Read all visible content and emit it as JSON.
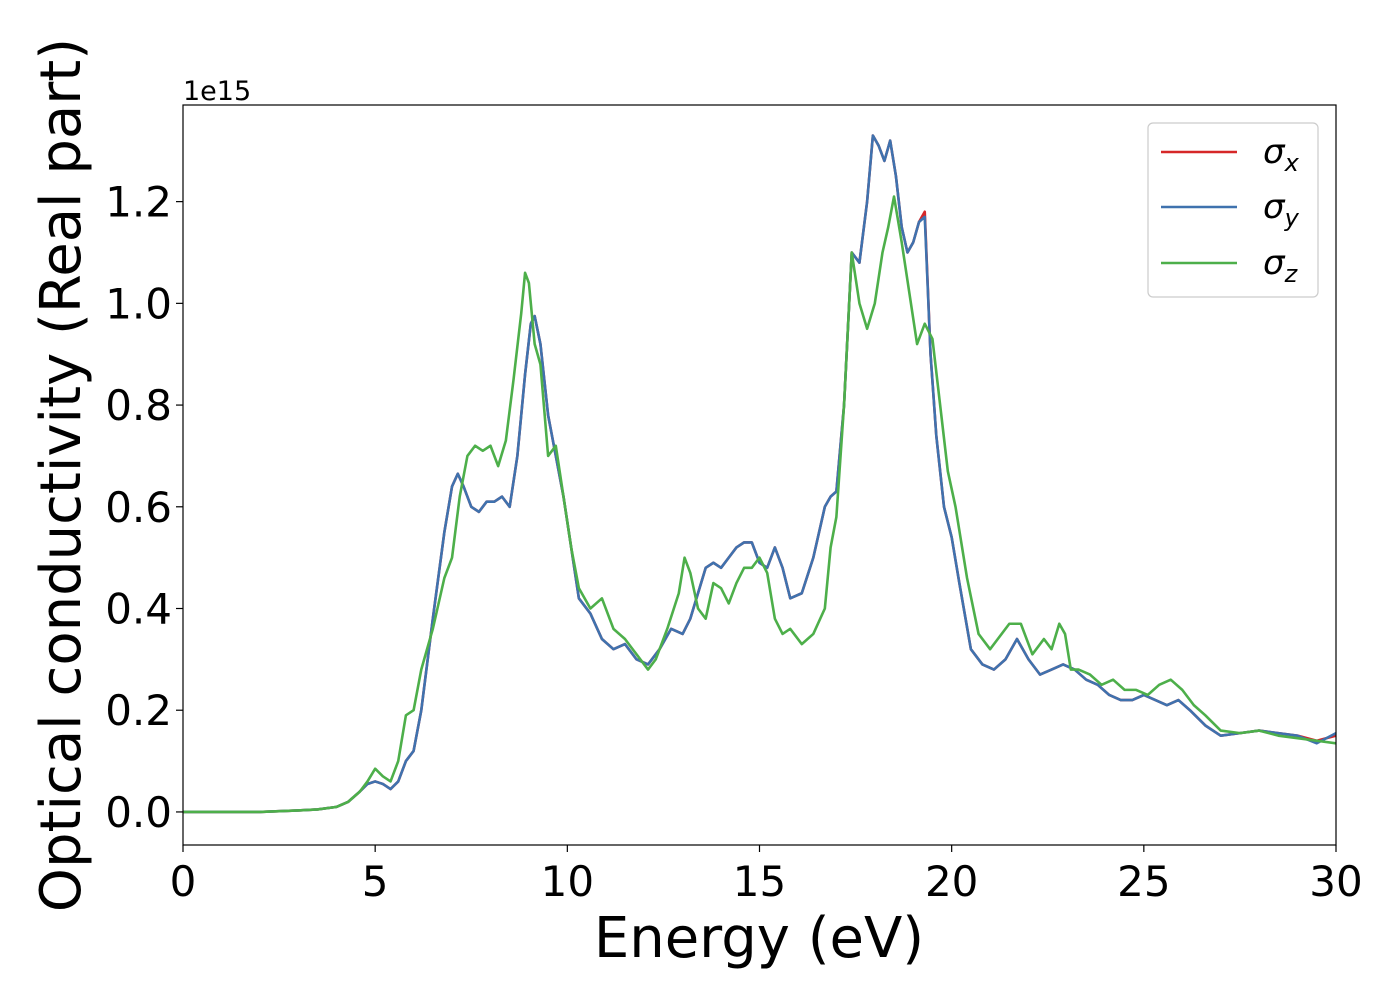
{
  "chart_data": {
    "type": "line",
    "xlabel": "Energy (eV)",
    "ylabel": "Optical conductivity (Real part)",
    "offset_text": "1e15",
    "xlim": [
      0,
      30
    ],
    "ylim": [
      -0.065,
      1.39
    ],
    "y_scale_factor": 1000000000000000.0,
    "xticks": [
      0,
      5,
      10,
      15,
      20,
      25,
      30
    ],
    "xtick_labels": [
      "0",
      "5",
      "10",
      "15",
      "20",
      "25",
      "30"
    ],
    "yticks": [
      0.0,
      0.2,
      0.4,
      0.6,
      0.8,
      1.0,
      1.2
    ],
    "ytick_labels": [
      "0.0",
      "0.2",
      "0.4",
      "0.6",
      "0.8",
      "1.0",
      "1.2"
    ],
    "grid": false,
    "legend_position": "top-right",
    "legend": [
      {
        "symbol": "σ",
        "subscript": "x",
        "color": "#d62728"
      },
      {
        "symbol": "σ",
        "subscript": "y",
        "color": "#3f72ae"
      },
      {
        "symbol": "σ",
        "subscript": "z",
        "color": "#4daf4a"
      }
    ],
    "series": [
      {
        "color": "#d62728",
        "x": [
          0,
          2,
          3,
          3.5,
          4,
          4.3,
          4.6,
          4.8,
          5.0,
          5.2,
          5.4,
          5.6,
          5.8,
          6.0,
          6.2,
          6.5,
          6.8,
          7.0,
          7.15,
          7.3,
          7.5,
          7.7,
          7.9,
          8.1,
          8.3,
          8.5,
          8.7,
          8.9,
          9.05,
          9.15,
          9.3,
          9.5,
          9.7,
          9.9,
          10.1,
          10.3,
          10.6,
          10.9,
          11.2,
          11.5,
          11.8,
          12.1,
          12.4,
          12.7,
          13.0,
          13.2,
          13.4,
          13.6,
          13.8,
          14.0,
          14.2,
          14.4,
          14.6,
          14.8,
          15.0,
          15.2,
          15.4,
          15.6,
          15.8,
          16.1,
          16.4,
          16.7,
          16.85,
          17.0,
          17.2,
          17.4,
          17.6,
          17.8,
          17.95,
          18.1,
          18.25,
          18.4,
          18.55,
          18.7,
          18.85,
          19.0,
          19.15,
          19.3,
          19.45,
          19.6,
          19.8,
          20.0,
          20.2,
          20.5,
          20.8,
          21.1,
          21.4,
          21.7,
          22.0,
          22.3,
          22.6,
          22.9,
          23.2,
          23.5,
          23.8,
          24.1,
          24.4,
          24.7,
          25.0,
          25.3,
          25.6,
          25.9,
          26.2,
          26.6,
          27.0,
          27.5,
          28.0,
          28.5,
          29.0,
          29.5,
          30.0
        ],
        "y": [
          0,
          0,
          0.003,
          0.005,
          0.01,
          0.02,
          0.04,
          0.055,
          0.06,
          0.055,
          0.045,
          0.06,
          0.1,
          0.12,
          0.2,
          0.38,
          0.55,
          0.64,
          0.665,
          0.64,
          0.6,
          0.59,
          0.61,
          0.61,
          0.62,
          0.6,
          0.7,
          0.86,
          0.96,
          0.975,
          0.92,
          0.78,
          0.7,
          0.62,
          0.52,
          0.42,
          0.39,
          0.34,
          0.32,
          0.33,
          0.3,
          0.29,
          0.32,
          0.36,
          0.35,
          0.38,
          0.43,
          0.48,
          0.49,
          0.48,
          0.5,
          0.52,
          0.53,
          0.53,
          0.49,
          0.48,
          0.52,
          0.48,
          0.42,
          0.43,
          0.5,
          0.6,
          0.62,
          0.63,
          0.8,
          1.1,
          1.08,
          1.2,
          1.33,
          1.31,
          1.28,
          1.32,
          1.25,
          1.15,
          1.1,
          1.12,
          1.16,
          1.18,
          0.9,
          0.74,
          0.6,
          0.54,
          0.45,
          0.32,
          0.29,
          0.28,
          0.3,
          0.34,
          0.3,
          0.27,
          0.28,
          0.29,
          0.28,
          0.26,
          0.25,
          0.23,
          0.22,
          0.22,
          0.23,
          0.22,
          0.21,
          0.22,
          0.2,
          0.17,
          0.15,
          0.155,
          0.16,
          0.155,
          0.15,
          0.14,
          0.15
        ]
      },
      {
        "color": "#3f72ae",
        "x": [
          0,
          2,
          3,
          3.5,
          4,
          4.3,
          4.6,
          4.8,
          5.0,
          5.2,
          5.4,
          5.6,
          5.8,
          6.0,
          6.2,
          6.5,
          6.8,
          7.0,
          7.15,
          7.3,
          7.5,
          7.7,
          7.9,
          8.1,
          8.3,
          8.5,
          8.7,
          8.9,
          9.05,
          9.15,
          9.3,
          9.5,
          9.7,
          9.9,
          10.1,
          10.3,
          10.6,
          10.9,
          11.2,
          11.5,
          11.8,
          12.1,
          12.4,
          12.7,
          13.0,
          13.2,
          13.4,
          13.6,
          13.8,
          14.0,
          14.2,
          14.4,
          14.6,
          14.8,
          15.0,
          15.2,
          15.4,
          15.6,
          15.8,
          16.1,
          16.4,
          16.7,
          16.85,
          17.0,
          17.2,
          17.4,
          17.6,
          17.8,
          17.95,
          18.1,
          18.25,
          18.4,
          18.55,
          18.7,
          18.85,
          19.0,
          19.15,
          19.3,
          19.45,
          19.6,
          19.8,
          20.0,
          20.2,
          20.5,
          20.8,
          21.1,
          21.4,
          21.7,
          22.0,
          22.3,
          22.6,
          22.9,
          23.2,
          23.5,
          23.8,
          24.1,
          24.4,
          24.7,
          25.0,
          25.3,
          25.6,
          25.9,
          26.2,
          26.6,
          27.0,
          27.5,
          28.0,
          28.5,
          29.0,
          29.5,
          30.0
        ],
        "y": [
          0,
          0,
          0.003,
          0.005,
          0.01,
          0.02,
          0.04,
          0.055,
          0.06,
          0.055,
          0.045,
          0.06,
          0.1,
          0.12,
          0.2,
          0.38,
          0.55,
          0.64,
          0.665,
          0.64,
          0.6,
          0.59,
          0.61,
          0.61,
          0.62,
          0.6,
          0.7,
          0.86,
          0.96,
          0.975,
          0.92,
          0.78,
          0.7,
          0.62,
          0.52,
          0.42,
          0.39,
          0.34,
          0.32,
          0.33,
          0.3,
          0.29,
          0.32,
          0.36,
          0.35,
          0.38,
          0.43,
          0.48,
          0.49,
          0.48,
          0.5,
          0.52,
          0.53,
          0.53,
          0.49,
          0.48,
          0.52,
          0.48,
          0.42,
          0.43,
          0.5,
          0.6,
          0.62,
          0.63,
          0.8,
          1.1,
          1.08,
          1.2,
          1.33,
          1.31,
          1.28,
          1.32,
          1.25,
          1.15,
          1.1,
          1.12,
          1.16,
          1.17,
          0.9,
          0.74,
          0.6,
          0.54,
          0.45,
          0.32,
          0.29,
          0.28,
          0.3,
          0.34,
          0.3,
          0.27,
          0.28,
          0.29,
          0.28,
          0.26,
          0.25,
          0.23,
          0.22,
          0.22,
          0.23,
          0.22,
          0.21,
          0.22,
          0.2,
          0.17,
          0.15,
          0.155,
          0.16,
          0.155,
          0.15,
          0.135,
          0.155
        ]
      },
      {
        "color": "#4daf4a",
        "x": [
          0,
          2,
          3,
          3.5,
          4,
          4.3,
          4.6,
          4.8,
          5.0,
          5.2,
          5.4,
          5.6,
          5.8,
          6.0,
          6.2,
          6.5,
          6.8,
          7.0,
          7.2,
          7.4,
          7.6,
          7.8,
          8.0,
          8.2,
          8.4,
          8.6,
          8.8,
          8.9,
          9.0,
          9.15,
          9.3,
          9.5,
          9.7,
          9.9,
          10.1,
          10.3,
          10.6,
          10.9,
          11.2,
          11.5,
          11.8,
          12.1,
          12.3,
          12.6,
          12.9,
          13.05,
          13.2,
          13.4,
          13.6,
          13.8,
          14.0,
          14.2,
          14.4,
          14.6,
          14.8,
          15.0,
          15.2,
          15.4,
          15.6,
          15.8,
          16.1,
          16.4,
          16.7,
          16.85,
          17.0,
          17.2,
          17.4,
          17.6,
          17.8,
          18.0,
          18.2,
          18.35,
          18.5,
          18.7,
          18.9,
          19.1,
          19.3,
          19.5,
          19.7,
          19.9,
          20.1,
          20.4,
          20.7,
          21.0,
          21.2,
          21.5,
          21.8,
          22.1,
          22.4,
          22.6,
          22.8,
          22.95,
          23.1,
          23.3,
          23.6,
          23.9,
          24.2,
          24.5,
          24.8,
          25.1,
          25.4,
          25.7,
          26.0,
          26.3,
          26.6,
          27.0,
          27.5,
          28.0,
          28.5,
          29.0,
          29.5,
          30.0
        ],
        "y": [
          0,
          0,
          0.003,
          0.005,
          0.01,
          0.02,
          0.04,
          0.06,
          0.085,
          0.07,
          0.06,
          0.1,
          0.19,
          0.2,
          0.28,
          0.36,
          0.46,
          0.5,
          0.62,
          0.7,
          0.72,
          0.71,
          0.72,
          0.68,
          0.73,
          0.85,
          0.98,
          1.06,
          1.04,
          0.92,
          0.88,
          0.7,
          0.72,
          0.62,
          0.52,
          0.44,
          0.4,
          0.42,
          0.36,
          0.34,
          0.31,
          0.28,
          0.3,
          0.36,
          0.43,
          0.5,
          0.47,
          0.4,
          0.38,
          0.45,
          0.44,
          0.41,
          0.45,
          0.48,
          0.48,
          0.5,
          0.47,
          0.38,
          0.35,
          0.36,
          0.33,
          0.35,
          0.4,
          0.52,
          0.58,
          0.8,
          1.1,
          1.0,
          0.95,
          1.0,
          1.1,
          1.15,
          1.21,
          1.12,
          1.02,
          0.92,
          0.96,
          0.93,
          0.8,
          0.67,
          0.6,
          0.46,
          0.35,
          0.32,
          0.34,
          0.37,
          0.37,
          0.31,
          0.34,
          0.32,
          0.37,
          0.35,
          0.28,
          0.28,
          0.27,
          0.25,
          0.26,
          0.24,
          0.24,
          0.23,
          0.25,
          0.26,
          0.24,
          0.21,
          0.19,
          0.16,
          0.155,
          0.16,
          0.15,
          0.145,
          0.14,
          0.135
        ]
      }
    ]
  }
}
